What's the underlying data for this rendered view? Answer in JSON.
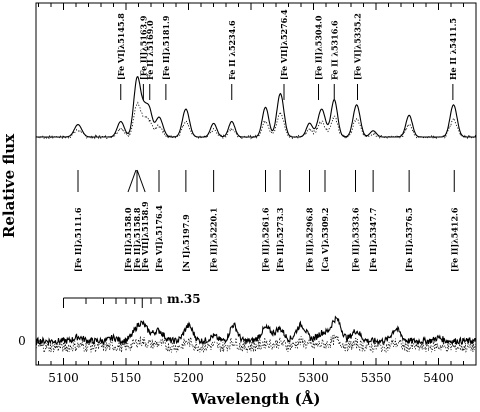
{
  "chart_data": {
    "type": "line",
    "title": "",
    "xlabel": "Wavelength (Å)",
    "ylabel": "Relative flux",
    "xlim": [
      5078,
      5430
    ],
    "grid": false,
    "x_ticks": [
      5100,
      5150,
      5200,
      5250,
      5300,
      5350,
      5400
    ],
    "y_ticks": [
      {
        "value": 0,
        "label": "0"
      }
    ],
    "upper_lines": [
      {
        "wavelength": 5145.8,
        "label": "[Fe VI]λ5145.8"
      },
      {
        "wavelength": 5163.9,
        "label": "[Fe II]λ5163.9"
      },
      {
        "wavelength": 5169.0,
        "label": "Fe II λ5169.0"
      },
      {
        "wavelength": 5181.9,
        "label": "[Fe II]λ5181.9"
      },
      {
        "wavelength": 5234.6,
        "label": "Fe II λ5234.6"
      },
      {
        "wavelength": 5276.4,
        "label": "[Fe VII]λ5276.4"
      },
      {
        "wavelength": 5304.0,
        "label": "[Fe II]λ5304.0"
      },
      {
        "wavelength": 5316.6,
        "label": "Fe II λ5316.6"
      },
      {
        "wavelength": 5335.2,
        "label": "[Fe VI]λ5335.2"
      },
      {
        "wavelength": 5411.5,
        "label": "He II λ5411.5"
      }
    ],
    "lower_lines": [
      {
        "wavelength": 5111.6,
        "label": "[Fe II]λ5111.6"
      },
      {
        "wavelength": 5158.0,
        "label": "[Fe II]λ5158.0"
      },
      {
        "wavelength": 5158.8,
        "label": "[Fe II]λ5158.8"
      },
      {
        "wavelength": 5158.9,
        "label": "[Fe VII]λ5158.9"
      },
      {
        "wavelength": 5176.4,
        "label": "[Fe VI]λ5176.4"
      },
      {
        "wavelength": 5197.9,
        "label": "[N I]λ5197.9"
      },
      {
        "wavelength": 5220.1,
        "label": "[Fe II]λ5220.1"
      },
      {
        "wavelength": 5261.6,
        "label": "[Fe II]λ5261.6"
      },
      {
        "wavelength": 5273.3,
        "label": "[Fe II]λ5273.3"
      },
      {
        "wavelength": 5296.8,
        "label": "[Fe II]λ5296.8"
      },
      {
        "wavelength": 5309.2,
        "label": "[Ca V]λ5309.2"
      },
      {
        "wavelength": 5333.6,
        "label": "[Fe II]λ5333.6"
      },
      {
        "wavelength": 5347.7,
        "label": "[Fe II]λ5347.7"
      },
      {
        "wavelength": 5376.5,
        "label": "[Fe II]λ5376.5"
      },
      {
        "wavelength": 5412.6,
        "label": "[Fe II]λ5412.6"
      }
    ],
    "upper_model_peaks": [
      {
        "x": 5111.6,
        "h": 0.2,
        "w": 3.0
      },
      {
        "x": 5145.8,
        "h": 0.25,
        "w": 2.8
      },
      {
        "x": 5159.0,
        "h": 0.95,
        "w": 2.8
      },
      {
        "x": 5165.0,
        "h": 0.4,
        "w": 2.5
      },
      {
        "x": 5169.0,
        "h": 0.35,
        "w": 2.2
      },
      {
        "x": 5176.4,
        "h": 0.32,
        "w": 3.0
      },
      {
        "x": 5197.9,
        "h": 0.45,
        "w": 2.8
      },
      {
        "x": 5220.1,
        "h": 0.22,
        "w": 2.5
      },
      {
        "x": 5234.6,
        "h": 0.25,
        "w": 2.5
      },
      {
        "x": 5261.6,
        "h": 0.48,
        "w": 2.6
      },
      {
        "x": 5273.5,
        "h": 0.7,
        "w": 2.8
      },
      {
        "x": 5296.8,
        "h": 0.22,
        "w": 2.5
      },
      {
        "x": 5306.5,
        "h": 0.45,
        "w": 3.0
      },
      {
        "x": 5316.6,
        "h": 0.6,
        "w": 2.6
      },
      {
        "x": 5334.5,
        "h": 0.52,
        "w": 2.8
      },
      {
        "x": 5347.7,
        "h": 0.1,
        "w": 2.5
      },
      {
        "x": 5376.5,
        "h": 0.35,
        "w": 2.6
      },
      {
        "x": 5412.0,
        "h": 0.52,
        "w": 2.8
      }
    ],
    "lower_model_peaks": [
      {
        "x": 5112,
        "h": 0.1,
        "w": 3.5
      },
      {
        "x": 5140,
        "h": 0.08,
        "w": 3.0
      },
      {
        "x": 5162,
        "h": 0.45,
        "w": 5.0
      },
      {
        "x": 5176,
        "h": 0.25,
        "w": 4.0
      },
      {
        "x": 5200,
        "h": 0.38,
        "w": 3.5
      },
      {
        "x": 5220,
        "h": 0.12,
        "w": 3.0
      },
      {
        "x": 5236,
        "h": 0.4,
        "w": 3.0
      },
      {
        "x": 5262,
        "h": 0.32,
        "w": 4.0
      },
      {
        "x": 5273,
        "h": 0.3,
        "w": 3.5
      },
      {
        "x": 5290,
        "h": 0.4,
        "w": 4.0
      },
      {
        "x": 5307,
        "h": 0.2,
        "w": 4.0
      },
      {
        "x": 5318,
        "h": 0.55,
        "w": 4.0
      },
      {
        "x": 5334,
        "h": 0.25,
        "w": 3.5
      },
      {
        "x": 5366,
        "h": 0.3,
        "w": 3.5
      },
      {
        "x": 5400,
        "h": 0.08,
        "w": 3.0
      }
    ],
    "multiplet": {
      "label": "m.35",
      "wavelengths": [
        5100,
        5118,
        5132,
        5142,
        5150,
        5157,
        5163,
        5170,
        5178
      ],
      "heights": [
        1,
        0.6,
        0.6,
        0.6,
        0.6,
        0.6,
        1,
        0.6,
        0.6
      ]
    }
  }
}
